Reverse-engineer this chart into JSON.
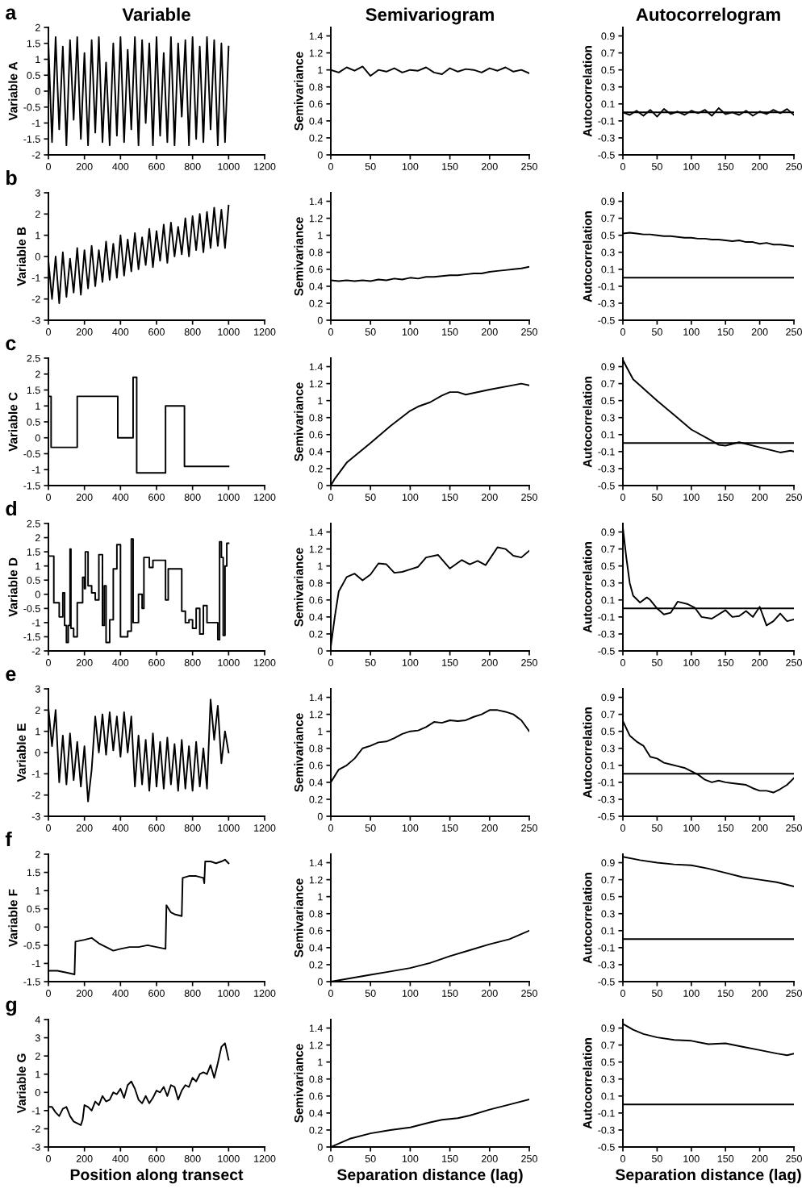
{
  "chart_data": [
    {
      "type": "line",
      "title": "Variable",
      "ylabel": "Variable A",
      "annotations": [
        "a"
      ],
      "xlim": [
        0,
        1200
      ],
      "xticks": [
        0,
        200,
        400,
        600,
        800,
        1000,
        1200
      ],
      "ylim": [
        -2,
        2
      ],
      "yticks": [
        -2,
        -1.5,
        -1,
        -0.5,
        0,
        0.5,
        1,
        1.5,
        2
      ],
      "grid": false,
      "legend": false,
      "series": [
        {
          "color": "#000000",
          "x": [
            0,
            20,
            40,
            60,
            80,
            100,
            120,
            140,
            160,
            180,
            200,
            220,
            240,
            260,
            280,
            300,
            320,
            340,
            360,
            380,
            400,
            420,
            440,
            460,
            480,
            500,
            520,
            540,
            560,
            580,
            600,
            620,
            640,
            660,
            680,
            700,
            720,
            740,
            760,
            780,
            800,
            820,
            840,
            860,
            880,
            900,
            920,
            940,
            960,
            980,
            1000
          ],
          "values": [
            1.5,
            -1.6,
            1.7,
            -1.2,
            1.4,
            -1.7,
            1.6,
            -0.9,
            1.7,
            -1.5,
            1.2,
            -1.7,
            1.6,
            -1.3,
            1.7,
            -1.6,
            0.9,
            -1.7,
            1.5,
            -1.4,
            1.7,
            -1.6,
            1.3,
            -1.2,
            1.7,
            -1.7,
            1.6,
            -1.0,
            1.5,
            -1.7,
            1.7,
            -1.4,
            1.2,
            -1.6,
            1.7,
            -1.7,
            1.5,
            -0.8,
            1.6,
            -1.7,
            1.7,
            -1.5,
            1.4,
            -1.6,
            1.7,
            -1.2,
            1.6,
            -1.7,
            1.5,
            -1.6,
            1.4
          ]
        }
      ]
    },
    {
      "type": "line",
      "title": "Semivariogram",
      "ylabel": "Semivariance",
      "xlim": [
        0,
        250
      ],
      "xticks": [
        0,
        50,
        100,
        150,
        200,
        250
      ],
      "ylim": [
        0,
        1.5
      ],
      "yticks": [
        0,
        0.2,
        0.4,
        0.6,
        0.8,
        1,
        1.2,
        1.4
      ],
      "grid": false,
      "legend": false,
      "series": [
        {
          "color": "#000000",
          "x": [
            0,
            10,
            20,
            30,
            40,
            50,
            60,
            70,
            80,
            90,
            100,
            110,
            120,
            130,
            140,
            150,
            160,
            170,
            180,
            190,
            200,
            210,
            220,
            230,
            240,
            250
          ],
          "values": [
            1.0,
            0.97,
            1.03,
            0.99,
            1.04,
            0.93,
            1.0,
            0.98,
            1.02,
            0.97,
            1.0,
            0.99,
            1.03,
            0.97,
            0.95,
            1.02,
            0.98,
            1.01,
            1.0,
            0.97,
            1.02,
            0.99,
            1.03,
            0.98,
            1.0,
            0.96
          ]
        }
      ]
    },
    {
      "type": "line",
      "title": "Autocorrelogram",
      "ylabel": "Autocorrelation",
      "xlim": [
        0,
        250
      ],
      "xticks": [
        0,
        50,
        100,
        150,
        200,
        250
      ],
      "ylim": [
        -0.5,
        1.0
      ],
      "yticks": [
        -0.5,
        -0.3,
        -0.1,
        0.1,
        0.3,
        0.5,
        0.7,
        0.9
      ],
      "ref_lines": [
        {
          "axis": "y",
          "value": 0
        }
      ],
      "grid": false,
      "legend": false,
      "series": [
        {
          "color": "#000000",
          "x": [
            0,
            10,
            20,
            30,
            40,
            50,
            60,
            70,
            80,
            90,
            100,
            110,
            120,
            130,
            140,
            150,
            160,
            170,
            180,
            190,
            200,
            210,
            220,
            230,
            240,
            250
          ],
          "values": [
            0.0,
            -0.03,
            0.02,
            -0.04,
            0.03,
            -0.05,
            0.04,
            -0.02,
            0.01,
            -0.03,
            0.02,
            -0.01,
            0.03,
            -0.04,
            0.05,
            -0.02,
            0.0,
            -0.03,
            0.02,
            -0.04,
            0.01,
            -0.02,
            0.03,
            -0.01,
            0.04,
            -0.03
          ]
        }
      ]
    },
    {
      "type": "line",
      "ylabel": "Variable B",
      "annotations": [
        "b"
      ],
      "xlim": [
        0,
        1200
      ],
      "xticks": [
        0,
        200,
        400,
        600,
        800,
        1000,
        1200
      ],
      "ylim": [
        -3,
        3
      ],
      "yticks": [
        -3,
        -2,
        -1,
        0,
        1,
        2,
        3
      ],
      "grid": false,
      "legend": false,
      "series": [
        {
          "color": "#000000",
          "x": [
            0,
            20,
            40,
            60,
            80,
            100,
            120,
            140,
            160,
            180,
            200,
            220,
            240,
            260,
            280,
            300,
            320,
            340,
            360,
            380,
            400,
            420,
            440,
            460,
            480,
            500,
            520,
            540,
            560,
            580,
            600,
            620,
            640,
            660,
            680,
            700,
            720,
            740,
            760,
            780,
            800,
            820,
            840,
            860,
            880,
            900,
            920,
            940,
            960,
            980,
            1000
          ],
          "values": [
            -0.2,
            -2.0,
            0.0,
            -2.2,
            0.2,
            -1.9,
            -0.1,
            -1.7,
            0.4,
            -1.8,
            0.3,
            -1.5,
            0.5,
            -1.4,
            0.3,
            -1.2,
            0.7,
            -1.1,
            0.6,
            -1.0,
            1.0,
            -0.9,
            0.8,
            -0.7,
            1.1,
            -0.6,
            0.9,
            -0.4,
            1.3,
            -0.5,
            1.2,
            -0.2,
            1.5,
            -0.3,
            1.6,
            0.0,
            1.4,
            0.1,
            1.8,
            0.0,
            1.9,
            0.3,
            2.0,
            0.2,
            2.1,
            0.4,
            2.3,
            0.5,
            2.2,
            0.4,
            2.4
          ]
        }
      ]
    },
    {
      "type": "line",
      "ylabel": "Semivariance",
      "xlim": [
        0,
        250
      ],
      "xticks": [
        0,
        50,
        100,
        150,
        200,
        250
      ],
      "ylim": [
        0,
        1.5
      ],
      "yticks": [
        0,
        0.2,
        0.4,
        0.6,
        0.8,
        1,
        1.2,
        1.4
      ],
      "grid": false,
      "legend": false,
      "series": [
        {
          "color": "#000000",
          "x": [
            0,
            10,
            20,
            30,
            40,
            50,
            60,
            70,
            80,
            90,
            100,
            110,
            120,
            130,
            140,
            150,
            160,
            170,
            180,
            190,
            200,
            210,
            220,
            230,
            240,
            250
          ],
          "values": [
            0.47,
            0.46,
            0.47,
            0.46,
            0.47,
            0.46,
            0.48,
            0.47,
            0.49,
            0.48,
            0.5,
            0.49,
            0.51,
            0.51,
            0.52,
            0.53,
            0.53,
            0.54,
            0.55,
            0.55,
            0.57,
            0.58,
            0.59,
            0.6,
            0.61,
            0.63
          ]
        }
      ]
    },
    {
      "type": "line",
      "ylabel": "Autocorrelation",
      "xlim": [
        0,
        250
      ],
      "xticks": [
        0,
        50,
        100,
        150,
        200,
        250
      ],
      "ylim": [
        -0.5,
        1.0
      ],
      "yticks": [
        -0.5,
        -0.3,
        -0.1,
        0.1,
        0.3,
        0.5,
        0.7,
        0.9
      ],
      "ref_lines": [
        {
          "axis": "y",
          "value": 0
        }
      ],
      "grid": false,
      "legend": false,
      "series": [
        {
          "color": "#000000",
          "x": [
            0,
            10,
            20,
            30,
            40,
            50,
            60,
            70,
            80,
            90,
            100,
            110,
            120,
            130,
            140,
            150,
            160,
            170,
            180,
            190,
            200,
            210,
            220,
            230,
            240,
            250
          ],
          "values": [
            0.52,
            0.53,
            0.52,
            0.51,
            0.51,
            0.5,
            0.49,
            0.49,
            0.48,
            0.47,
            0.47,
            0.46,
            0.46,
            0.45,
            0.45,
            0.44,
            0.43,
            0.44,
            0.42,
            0.42,
            0.4,
            0.41,
            0.39,
            0.39,
            0.38,
            0.37
          ]
        }
      ]
    },
    {
      "type": "line",
      "ylabel": "Variable C",
      "annotations": [
        "c"
      ],
      "xlim": [
        0,
        1200
      ],
      "xticks": [
        0,
        200,
        400,
        600,
        800,
        1000,
        1200
      ],
      "ylim": [
        -1.5,
        2.5
      ],
      "yticks": [
        -1.5,
        -1,
        -0.5,
        0,
        0.5,
        1,
        1.5,
        2,
        2.5
      ],
      "grid": false,
      "legend": false,
      "series": [
        {
          "color": "#000000",
          "x": [
            0,
            15,
            15,
            160,
            160,
            385,
            385,
            470,
            470,
            490,
            490,
            650,
            650,
            755,
            755,
            1000
          ],
          "values": [
            1.3,
            1.3,
            -0.3,
            -0.3,
            1.3,
            1.3,
            0,
            0,
            1.9,
            1.9,
            -1.1,
            -1.1,
            1.0,
            1.0,
            -0.9,
            -0.9
          ]
        }
      ]
    },
    {
      "type": "line",
      "ylabel": "Semivariance",
      "xlim": [
        0,
        250
      ],
      "xticks": [
        0,
        50,
        100,
        150,
        200,
        250
      ],
      "ylim": [
        0,
        1.5
      ],
      "yticks": [
        0,
        0.2,
        0.4,
        0.6,
        0.8,
        1,
        1.2,
        1.4
      ],
      "grid": false,
      "legend": false,
      "series": [
        {
          "color": "#000000",
          "x": [
            0,
            5,
            20,
            50,
            75,
            100,
            110,
            125,
            140,
            150,
            160,
            170,
            200,
            240,
            250
          ],
          "values": [
            0,
            0.08,
            0.27,
            0.5,
            0.7,
            0.88,
            0.93,
            0.98,
            1.06,
            1.1,
            1.1,
            1.07,
            1.13,
            1.2,
            1.18
          ]
        }
      ]
    },
    {
      "type": "line",
      "ylabel": "Autocorrelation",
      "xlim": [
        0,
        250
      ],
      "xticks": [
        0,
        50,
        100,
        150,
        200,
        250
      ],
      "ylim": [
        -0.5,
        1.0
      ],
      "yticks": [
        -0.5,
        -0.3,
        -0.1,
        0.1,
        0.3,
        0.5,
        0.7,
        0.9
      ],
      "ref_lines": [
        {
          "axis": "y",
          "value": 0
        }
      ],
      "grid": false,
      "legend": false,
      "series": [
        {
          "color": "#000000",
          "x": [
            0,
            5,
            15,
            50,
            75,
            100,
            125,
            140,
            150,
            170,
            200,
            230,
            245,
            250
          ],
          "values": [
            0.98,
            0.9,
            0.75,
            0.5,
            0.33,
            0.16,
            0.05,
            -0.02,
            -0.03,
            0.01,
            -0.05,
            -0.11,
            -0.09,
            -0.1
          ]
        }
      ]
    },
    {
      "type": "line",
      "ylabel": "Variable D",
      "annotations": [
        "d"
      ],
      "xlim": [
        0,
        1200
      ],
      "xticks": [
        0,
        200,
        400,
        600,
        800,
        1000,
        1200
      ],
      "ylim": [
        -2,
        2.5
      ],
      "yticks": [
        -2,
        -1.5,
        -1,
        -0.5,
        0,
        0.5,
        1,
        1.5,
        2,
        2.5
      ],
      "grid": false,
      "legend": false,
      "series": [
        {
          "color": "#000000",
          "x": [
            0,
            30,
            30,
            60,
            60,
            80,
            80,
            90,
            90,
            100,
            100,
            110,
            110,
            120,
            120,
            125,
            125,
            140,
            140,
            160,
            160,
            190,
            190,
            200,
            200,
            205,
            205,
            220,
            220,
            240,
            240,
            260,
            260,
            280,
            280,
            300,
            300,
            310,
            310,
            320,
            320,
            340,
            340,
            360,
            360,
            380,
            380,
            400,
            400,
            440,
            440,
            460,
            460,
            470,
            470,
            500,
            500,
            520,
            520,
            530,
            530,
            560,
            560,
            580,
            580,
            650,
            650,
            665,
            665,
            740,
            740,
            760,
            760,
            780,
            780,
            800,
            800,
            820,
            820,
            840,
            840,
            860,
            860,
            880,
            880,
            940,
            940,
            950,
            950,
            960,
            960,
            970,
            970,
            980,
            980,
            990,
            990,
            1000
          ],
          "values": [
            1.35,
            1.35,
            -0.3,
            -0.3,
            -0.8,
            -0.8,
            0.05,
            0.05,
            -1.1,
            -1.1,
            -1.7,
            -1.7,
            -1.1,
            -1.1,
            1.6,
            1.6,
            -1.2,
            -1.2,
            -1.5,
            -1.5,
            -0.3,
            -0.3,
            0.6,
            0.6,
            0.2,
            0.2,
            1.5,
            1.5,
            0.3,
            0.3,
            0.05,
            0.05,
            -0.2,
            -0.2,
            1.4,
            1.4,
            -1.1,
            -1.1,
            0.3,
            0.3,
            -1.7,
            -1.7,
            -0.9,
            -0.9,
            0.9,
            0.9,
            1.75,
            1.75,
            -1.5,
            -1.5,
            -1.3,
            -1.3,
            1.95,
            1.95,
            -1.0,
            -1.0,
            0.0,
            0.0,
            -0.5,
            -0.5,
            1.3,
            1.3,
            0.95,
            0.95,
            1.2,
            1.2,
            -0.2,
            -0.2,
            0.9,
            0.9,
            -0.6,
            -0.6,
            -1.0,
            -1.0,
            -0.9,
            -0.9,
            -1.2,
            -1.2,
            -0.5,
            -0.5,
            -1.4,
            -1.4,
            -0.4,
            -0.4,
            -1.0,
            -1.0,
            -1.6,
            -1.6,
            1.85,
            1.85,
            1.3,
            1.3,
            -1.45,
            -1.45,
            1.0,
            1.0,
            1.8,
            1.8
          ]
        }
      ]
    },
    {
      "type": "line",
      "ylabel": "Semivariance",
      "xlim": [
        0,
        250
      ],
      "xticks": [
        0,
        50,
        100,
        150,
        200,
        250
      ],
      "ylim": [
        0,
        1.5
      ],
      "yticks": [
        0,
        0.2,
        0.4,
        0.6,
        0.8,
        1,
        1.2,
        1.4
      ],
      "grid": false,
      "legend": false,
      "series": [
        {
          "color": "#000000",
          "x": [
            0,
            5,
            10,
            20,
            30,
            40,
            50,
            60,
            70,
            80,
            90,
            100,
            110,
            120,
            135,
            150,
            165,
            175,
            185,
            195,
            210,
            220,
            230,
            240,
            250
          ],
          "values": [
            0.05,
            0.4,
            0.7,
            0.87,
            0.91,
            0.83,
            0.9,
            1.03,
            1.02,
            0.92,
            0.93,
            0.96,
            0.99,
            1.1,
            1.13,
            0.97,
            1.07,
            1.02,
            1.06,
            1.01,
            1.22,
            1.2,
            1.12,
            1.1,
            1.18
          ]
        }
      ]
    },
    {
      "type": "line",
      "ylabel": "Autocorrelation",
      "xlim": [
        0,
        250
      ],
      "xticks": [
        0,
        50,
        100,
        150,
        200,
        250
      ],
      "ylim": [
        -0.5,
        1.0
      ],
      "yticks": [
        -0.5,
        -0.3,
        -0.1,
        0.1,
        0.3,
        0.5,
        0.7,
        0.9
      ],
      "ref_lines": [
        {
          "axis": "y",
          "value": 0
        }
      ],
      "grid": false,
      "legend": false,
      "series": [
        {
          "color": "#000000",
          "x": [
            0,
            5,
            10,
            15,
            25,
            35,
            40,
            50,
            60,
            70,
            80,
            95,
            105,
            115,
            130,
            150,
            160,
            170,
            180,
            190,
            200,
            210,
            220,
            230,
            240,
            250
          ],
          "values": [
            0.95,
            0.6,
            0.3,
            0.15,
            0.07,
            0.13,
            0.1,
            0.0,
            -0.07,
            -0.05,
            0.08,
            0.05,
            0.01,
            -0.1,
            -0.12,
            -0.02,
            -0.1,
            -0.09,
            -0.03,
            -0.1,
            0.02,
            -0.2,
            -0.15,
            -0.06,
            -0.15,
            -0.13
          ]
        }
      ]
    },
    {
      "type": "line",
      "ylabel": "Variable E",
      "annotations": [
        "e"
      ],
      "xlim": [
        0,
        1200
      ],
      "xticks": [
        0,
        200,
        400,
        600,
        800,
        1000,
        1200
      ],
      "ylim": [
        -3,
        3
      ],
      "yticks": [
        -3,
        -2,
        -1,
        0,
        1,
        2,
        3
      ],
      "grid": false,
      "legend": false,
      "series": [
        {
          "color": "#000000",
          "x": [
            0,
            20,
            40,
            60,
            80,
            100,
            120,
            140,
            160,
            180,
            200,
            220,
            240,
            260,
            280,
            300,
            320,
            340,
            360,
            380,
            400,
            420,
            440,
            460,
            480,
            500,
            520,
            540,
            560,
            580,
            600,
            620,
            640,
            660,
            680,
            700,
            720,
            740,
            760,
            780,
            800,
            820,
            840,
            860,
            880,
            900,
            920,
            940,
            960,
            980,
            1000
          ],
          "values": [
            2.1,
            0.3,
            2.0,
            -1.4,
            0.8,
            -1.5,
            0.9,
            -1.3,
            0.5,
            -1.6,
            0.3,
            -2.3,
            -0.8,
            1.7,
            0.0,
            1.8,
            -0.1,
            1.9,
            0.1,
            1.7,
            -0.2,
            1.9,
            0.0,
            1.7,
            -1.6,
            0.8,
            -1.5,
            0.6,
            -1.8,
            0.9,
            -1.6,
            0.5,
            -1.7,
            0.7,
            -1.5,
            0.4,
            -1.8,
            0.6,
            -1.7,
            0.3,
            -1.8,
            0.5,
            -1.6,
            0.2,
            -1.7,
            2.5,
            0.6,
            2.2,
            -0.5,
            1.0,
            0.0
          ]
        }
      ]
    },
    {
      "type": "line",
      "ylabel": "Semivariance",
      "xlim": [
        0,
        250
      ],
      "xticks": [
        0,
        50,
        100,
        150,
        200,
        250
      ],
      "ylim": [
        0,
        1.5
      ],
      "yticks": [
        0,
        0.2,
        0.4,
        0.6,
        0.8,
        1,
        1.2,
        1.4
      ],
      "grid": false,
      "legend": false,
      "series": [
        {
          "color": "#000000",
          "x": [
            0,
            10,
            20,
            30,
            40,
            50,
            60,
            70,
            80,
            90,
            100,
            110,
            120,
            130,
            140,
            150,
            160,
            170,
            180,
            190,
            200,
            210,
            220,
            230,
            240,
            250
          ],
          "values": [
            0.4,
            0.55,
            0.6,
            0.68,
            0.8,
            0.83,
            0.87,
            0.88,
            0.92,
            0.97,
            1.0,
            1.01,
            1.05,
            1.11,
            1.1,
            1.13,
            1.12,
            1.13,
            1.17,
            1.2,
            1.25,
            1.25,
            1.23,
            1.2,
            1.13,
            1.0
          ]
        }
      ]
    },
    {
      "type": "line",
      "ylabel": "Autocorrelation",
      "xlim": [
        0,
        250
      ],
      "xticks": [
        0,
        50,
        100,
        150,
        200,
        250
      ],
      "ylim": [
        -0.5,
        1.0
      ],
      "yticks": [
        -0.5,
        -0.3,
        -0.1,
        0.1,
        0.3,
        0.5,
        0.7,
        0.9
      ],
      "ref_lines": [
        {
          "axis": "y",
          "value": 0
        }
      ],
      "grid": false,
      "legend": false,
      "series": [
        {
          "color": "#000000",
          "x": [
            0,
            10,
            20,
            30,
            40,
            50,
            60,
            70,
            80,
            90,
            100,
            110,
            120,
            130,
            140,
            150,
            160,
            170,
            180,
            190,
            200,
            210,
            220,
            230,
            240,
            250
          ],
          "values": [
            0.62,
            0.45,
            0.38,
            0.33,
            0.2,
            0.18,
            0.13,
            0.11,
            0.09,
            0.07,
            0.03,
            -0.01,
            -0.07,
            -0.1,
            -0.08,
            -0.1,
            -0.11,
            -0.12,
            -0.13,
            -0.17,
            -0.2,
            -0.2,
            -0.22,
            -0.18,
            -0.13,
            -0.05
          ]
        }
      ]
    },
    {
      "type": "line",
      "ylabel": "Variable F",
      "annotations": [
        "f"
      ],
      "xlim": [
        0,
        1200
      ],
      "xticks": [
        0,
        200,
        400,
        600,
        800,
        1000,
        1200
      ],
      "ylim": [
        -1.5,
        2
      ],
      "yticks": [
        -1.5,
        -1,
        -0.5,
        0,
        0.5,
        1,
        1.5,
        2
      ],
      "grid": false,
      "legend": false,
      "series": [
        {
          "color": "#000000",
          "x": [
            0,
            50,
            100,
            145,
            150,
            200,
            240,
            280,
            320,
            360,
            400,
            450,
            500,
            550,
            600,
            650,
            655,
            680,
            700,
            740,
            745,
            780,
            820,
            860,
            865,
            870,
            900,
            930,
            960,
            980,
            1000
          ],
          "values": [
            -1.2,
            -1.2,
            -1.25,
            -1.3,
            -0.4,
            -0.35,
            -0.3,
            -0.45,
            -0.55,
            -0.65,
            -0.6,
            -0.55,
            -0.55,
            -0.5,
            -0.55,
            -0.6,
            0.6,
            0.4,
            0.35,
            0.3,
            1.35,
            1.4,
            1.4,
            1.35,
            1.2,
            1.8,
            1.8,
            1.75,
            1.8,
            1.85,
            1.75
          ]
        }
      ]
    },
    {
      "type": "line",
      "ylabel": "Semivariance",
      "xlim": [
        0,
        250
      ],
      "xticks": [
        0,
        50,
        100,
        150,
        200,
        250
      ],
      "ylim": [
        0,
        1.5
      ],
      "yticks": [
        0,
        0.2,
        0.4,
        0.6,
        0.8,
        1,
        1.2,
        1.4
      ],
      "grid": false,
      "legend": false,
      "series": [
        {
          "color": "#000000",
          "x": [
            0,
            25,
            50,
            75,
            100,
            125,
            150,
            175,
            200,
            225,
            250
          ],
          "values": [
            0,
            0.04,
            0.08,
            0.12,
            0.16,
            0.22,
            0.3,
            0.37,
            0.44,
            0.5,
            0.6
          ]
        }
      ]
    },
    {
      "type": "line",
      "ylabel": "Autocorrelation",
      "xlim": [
        0,
        250
      ],
      "xticks": [
        0,
        50,
        100,
        150,
        200,
        250
      ],
      "ylim": [
        -0.5,
        1.0
      ],
      "yticks": [
        -0.5,
        -0.3,
        -0.1,
        0.1,
        0.3,
        0.5,
        0.7,
        0.9
      ],
      "ref_lines": [
        {
          "axis": "y",
          "value": 0
        }
      ],
      "grid": false,
      "legend": false,
      "series": [
        {
          "color": "#000000",
          "x": [
            0,
            25,
            50,
            75,
            100,
            125,
            150,
            175,
            200,
            225,
            250
          ],
          "values": [
            0.97,
            0.93,
            0.9,
            0.88,
            0.87,
            0.83,
            0.78,
            0.73,
            0.7,
            0.67,
            0.62
          ]
        }
      ]
    },
    {
      "type": "line",
      "ylabel": "Variable G",
      "xlabel": "Position along transect",
      "annotations": [
        "g"
      ],
      "xlim": [
        0,
        1200
      ],
      "xticks": [
        0,
        200,
        400,
        600,
        800,
        1000,
        1200
      ],
      "ylim": [
        -3,
        4
      ],
      "yticks": [
        -3,
        -2,
        -1,
        0,
        1,
        2,
        3,
        4
      ],
      "grid": false,
      "legend": false,
      "series": [
        {
          "color": "#000000",
          "x": [
            0,
            20,
            40,
            60,
            80,
            100,
            120,
            140,
            160,
            180,
            190,
            200,
            220,
            240,
            260,
            280,
            300,
            320,
            340,
            360,
            380,
            400,
            420,
            440,
            460,
            480,
            500,
            520,
            540,
            560,
            580,
            600,
            620,
            640,
            660,
            680,
            700,
            720,
            740,
            760,
            780,
            800,
            820,
            840,
            860,
            880,
            900,
            920,
            940,
            960,
            980,
            1000
          ],
          "values": [
            -0.8,
            -0.8,
            -1.1,
            -1.3,
            -0.9,
            -0.8,
            -1.3,
            -1.6,
            -1.7,
            -1.8,
            -1.5,
            -0.7,
            -0.8,
            -1.0,
            -0.5,
            -0.7,
            -0.2,
            -0.5,
            -0.4,
            0.0,
            -0.1,
            0.2,
            -0.3,
            0.4,
            0.6,
            0.2,
            -0.4,
            -0.6,
            -0.2,
            -0.6,
            -0.3,
            0.1,
            0.0,
            0.3,
            -0.2,
            0.4,
            0.3,
            -0.4,
            0.1,
            0.4,
            0.3,
            0.8,
            0.6,
            1.0,
            1.1,
            1.0,
            1.5,
            0.8,
            1.6,
            2.5,
            2.7,
            1.8
          ]
        }
      ]
    },
    {
      "type": "line",
      "ylabel": "Semivariance",
      "xlabel": "Separation distance (lag)",
      "xlim": [
        0,
        250
      ],
      "xticks": [
        0,
        50,
        100,
        150,
        200,
        250
      ],
      "ylim": [
        0,
        1.5
      ],
      "yticks": [
        0,
        0.2,
        0.4,
        0.6,
        0.8,
        1,
        1.2,
        1.4
      ],
      "grid": false,
      "legend": false,
      "series": [
        {
          "color": "#000000",
          "x": [
            0,
            25,
            50,
            75,
            100,
            125,
            140,
            160,
            175,
            200,
            225,
            250
          ],
          "values": [
            0,
            0.1,
            0.16,
            0.2,
            0.23,
            0.29,
            0.32,
            0.34,
            0.37,
            0.44,
            0.5,
            0.56
          ]
        }
      ]
    },
    {
      "type": "line",
      "ylabel": "Autocorrelation",
      "xlabel": "Separation distance (lag)",
      "xlim": [
        0,
        250
      ],
      "xticks": [
        0,
        50,
        100,
        150,
        200,
        250
      ],
      "ylim": [
        -0.5,
        1.0
      ],
      "yticks": [
        -0.5,
        -0.3,
        -0.1,
        0.1,
        0.3,
        0.5,
        0.7,
        0.9
      ],
      "ref_lines": [
        {
          "axis": "y",
          "value": 0
        }
      ],
      "grid": false,
      "legend": false,
      "series": [
        {
          "color": "#000000",
          "x": [
            0,
            15,
            30,
            50,
            75,
            100,
            125,
            150,
            175,
            200,
            225,
            240,
            250
          ],
          "values": [
            0.95,
            0.88,
            0.83,
            0.79,
            0.76,
            0.75,
            0.71,
            0.72,
            0.68,
            0.64,
            0.6,
            0.58,
            0.6
          ]
        }
      ]
    }
  ]
}
